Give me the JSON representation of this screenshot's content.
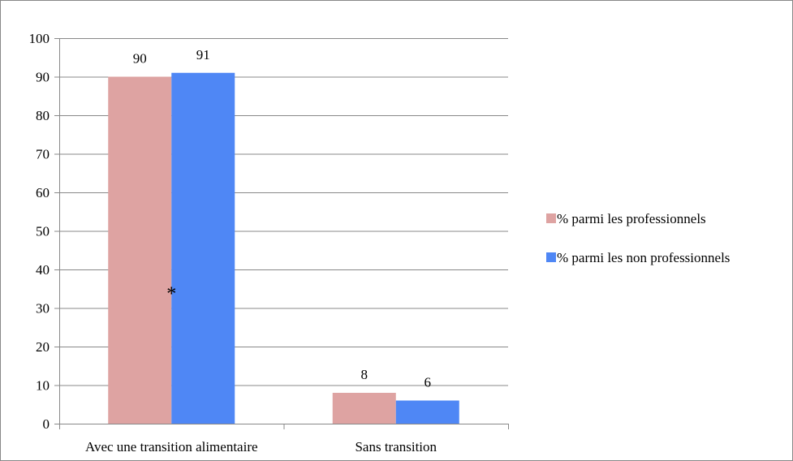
{
  "chart_data": {
    "type": "bar",
    "categories": [
      "Avec une transition alimentaire",
      "Sans transition"
    ],
    "series": [
      {
        "name": "% parmi les professionnels",
        "values": [
          90,
          8
        ],
        "color": "#dea3a2"
      },
      {
        "name": "% parmi les non professionnels",
        "values": [
          91,
          6
        ],
        "color": "#4f87f5"
      }
    ],
    "ylim": [
      0,
      100
    ],
    "yticks": [
      0,
      10,
      20,
      30,
      40,
      50,
      60,
      70,
      80,
      90,
      100
    ],
    "grid": true,
    "legend": "right",
    "annotation": "*",
    "axis_color": "#888888",
    "grid_color": "#888888"
  }
}
